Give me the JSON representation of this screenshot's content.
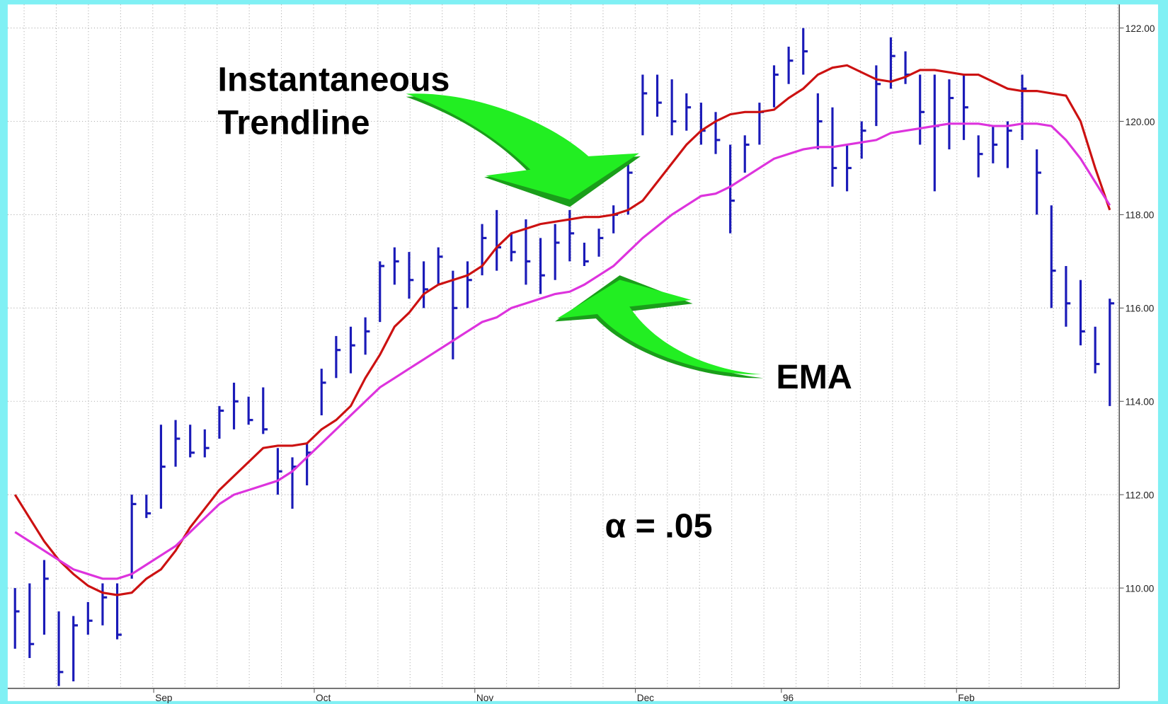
{
  "chart_data": {
    "type": "ohlc",
    "categories": [
      null,
      null,
      null,
      null,
      null,
      null,
      null,
      null,
      null,
      null,
      "Sep",
      null,
      null,
      null,
      null,
      null,
      null,
      null,
      null,
      null,
      null,
      "Oct",
      null,
      null,
      null,
      null,
      null,
      null,
      null,
      null,
      null,
      null,
      "Nov",
      null,
      null,
      null,
      null,
      null,
      null,
      null,
      null,
      null,
      null,
      "Dec",
      null,
      null,
      null,
      null,
      null,
      null,
      null,
      null,
      null,
      "96",
      null,
      null,
      null,
      null,
      null,
      null,
      null,
      null,
      null,
      null,
      null,
      "Feb",
      null,
      null,
      null,
      null,
      null,
      null,
      null,
      null,
      null,
      null
    ],
    "bars": {
      "color": "#1a1ab8",
      "high": [
        110.0,
        110.1,
        110.6,
        109.5,
        109.4,
        109.7,
        110.1,
        110.1,
        112.0,
        112.0,
        113.5,
        113.6,
        113.5,
        113.4,
        113.9,
        114.4,
        114.1,
        114.3,
        113.0,
        112.8,
        113.1,
        114.7,
        115.4,
        115.6,
        115.8,
        117.0,
        117.3,
        117.2,
        117.0,
        117.3,
        116.8,
        117.0,
        117.8,
        118.1,
        117.6,
        117.9,
        117.5,
        117.8,
        118.1,
        117.4,
        117.7,
        118.2,
        119.1,
        121.0,
        121.0,
        120.9,
        120.6,
        120.4,
        120.2,
        119.5,
        119.7,
        120.4,
        121.2,
        121.6,
        122.0,
        120.6,
        120.3,
        119.5,
        120.0,
        121.2,
        121.8,
        121.5,
        121.0,
        121.0,
        120.9,
        121.0,
        119.7,
        119.9,
        120.0,
        121.0,
        119.4,
        118.2,
        116.9,
        116.6,
        115.6,
        116.2
      ],
      "low": [
        108.7,
        108.5,
        109.0,
        107.9,
        108.0,
        109.0,
        109.2,
        108.9,
        110.2,
        111.5,
        111.7,
        112.6,
        112.8,
        112.8,
        113.2,
        113.4,
        113.5,
        113.3,
        112.0,
        111.7,
        112.2,
        113.7,
        114.5,
        114.6,
        115.0,
        115.7,
        116.5,
        116.2,
        116.0,
        116.5,
        114.9,
        116.0,
        116.7,
        116.8,
        117.0,
        116.5,
        116.3,
        116.6,
        117.0,
        116.9,
        117.1,
        117.6,
        118.0,
        119.7,
        120.1,
        119.7,
        119.8,
        119.5,
        119.3,
        117.6,
        118.9,
        119.5,
        120.3,
        120.8,
        121.0,
        119.4,
        118.6,
        118.5,
        119.2,
        119.9,
        120.7,
        120.8,
        119.5,
        118.5,
        119.4,
        119.6,
        118.8,
        119.1,
        119.0,
        119.6,
        118.0,
        116.0,
        115.6,
        115.2,
        114.6,
        113.9
      ],
      "close": [
        109.5,
        108.8,
        110.2,
        108.2,
        109.2,
        109.3,
        109.8,
        109.0,
        111.8,
        111.6,
        112.6,
        113.2,
        112.9,
        113.0,
        113.8,
        114.0,
        113.6,
        113.4,
        112.5,
        112.6,
        112.9,
        114.4,
        115.1,
        115.2,
        115.5,
        116.9,
        117.0,
        116.6,
        116.4,
        117.1,
        116.0,
        116.6,
        117.5,
        117.3,
        117.2,
        117.0,
        116.7,
        117.4,
        117.6,
        117.0,
        117.5,
        118.0,
        118.9,
        120.6,
        120.4,
        120.0,
        120.3,
        119.8,
        119.6,
        118.3,
        119.5,
        120.2,
        121.0,
        121.3,
        121.5,
        120.0,
        119.0,
        119.0,
        119.8,
        120.8,
        121.4,
        121.0,
        120.2,
        119.9,
        120.5,
        120.3,
        119.3,
        119.5,
        119.8,
        120.7,
        118.9,
        116.8,
        116.1,
        115.5,
        114.8,
        116.1
      ]
    },
    "lines": [
      {
        "color": "#cc1111",
        "values": [
          112.0,
          111.5,
          111.0,
          110.6,
          110.3,
          110.05,
          109.9,
          109.85,
          109.9,
          110.2,
          110.4,
          110.8,
          111.3,
          111.7,
          112.1,
          112.4,
          112.7,
          113.0,
          113.05,
          113.05,
          113.1,
          113.4,
          113.6,
          113.9,
          114.5,
          115.0,
          115.6,
          115.9,
          116.3,
          116.5,
          116.6,
          116.7,
          116.9,
          117.3,
          117.6,
          117.7,
          117.8,
          117.85,
          117.9,
          117.95,
          117.95,
          118.0,
          118.1,
          118.3,
          118.7,
          119.1,
          119.5,
          119.8,
          120.0,
          120.15,
          120.2,
          120.2,
          120.25,
          120.5,
          120.7,
          121.0,
          121.15,
          121.2,
          121.05,
          120.9,
          120.85,
          120.95,
          121.1,
          121.1,
          121.05,
          121.0,
          121.0,
          120.85,
          120.7,
          120.65,
          120.65,
          120.6,
          120.55,
          120.0,
          119.0,
          118.1
        ]
      },
      {
        "color": "#dd33dd",
        "values": [
          111.2,
          111.0,
          110.8,
          110.6,
          110.4,
          110.3,
          110.2,
          110.2,
          110.3,
          110.5,
          110.7,
          110.9,
          111.2,
          111.5,
          111.8,
          112.0,
          112.1,
          112.2,
          112.3,
          112.5,
          112.8,
          113.1,
          113.4,
          113.7,
          114.0,
          114.3,
          114.5,
          114.7,
          114.9,
          115.1,
          115.3,
          115.5,
          115.7,
          115.8,
          116.0,
          116.1,
          116.2,
          116.3,
          116.35,
          116.5,
          116.7,
          116.9,
          117.2,
          117.5,
          117.75,
          118.0,
          118.2,
          118.4,
          118.45,
          118.6,
          118.8,
          119.0,
          119.2,
          119.3,
          119.4,
          119.45,
          119.45,
          119.5,
          119.55,
          119.6,
          119.75,
          119.8,
          119.85,
          119.9,
          119.95,
          119.95,
          119.95,
          119.9,
          119.9,
          119.95,
          119.95,
          119.9,
          119.6,
          119.2,
          118.7,
          118.2
        ]
      }
    ],
    "ylim": [
      107.85,
      122.6
    ],
    "yticks": [
      {
        "value": 110,
        "label": "110.00"
      },
      {
        "value": 112,
        "label": "112.00"
      },
      {
        "value": 114,
        "label": "114.00"
      },
      {
        "value": 116,
        "label": "116.00"
      },
      {
        "value": 118,
        "label": "118.00"
      },
      {
        "value": 120,
        "label": "120.00"
      },
      {
        "value": 122,
        "label": "122.00"
      }
    ],
    "grid": true,
    "annotations": [
      "Instantaneous",
      "Trendline",
      "EMA",
      "α = .05"
    ]
  }
}
